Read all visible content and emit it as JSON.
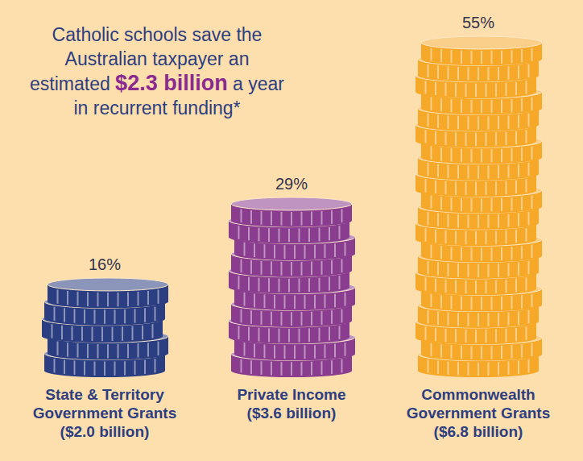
{
  "chart_data": {
    "type": "bar",
    "title": "Catholic schools save the Australian taxpayer an estimated $2.3 billion a year in recurrent funding*",
    "categories": [
      "State & Territory Government Grants ($2.0 billion)",
      "Private Income ($3.6 billion)",
      "Commonwealth Government Grants ($6.8 billion)"
    ],
    "values": [
      16,
      29,
      55
    ],
    "value_labels": [
      "16%",
      "29%",
      "55%"
    ],
    "data_labels": true,
    "colors": [
      "#2c3e82",
      "#8a3c8f",
      "#f6a828"
    ],
    "tick_labels": "x",
    "grid": false
  }
}
